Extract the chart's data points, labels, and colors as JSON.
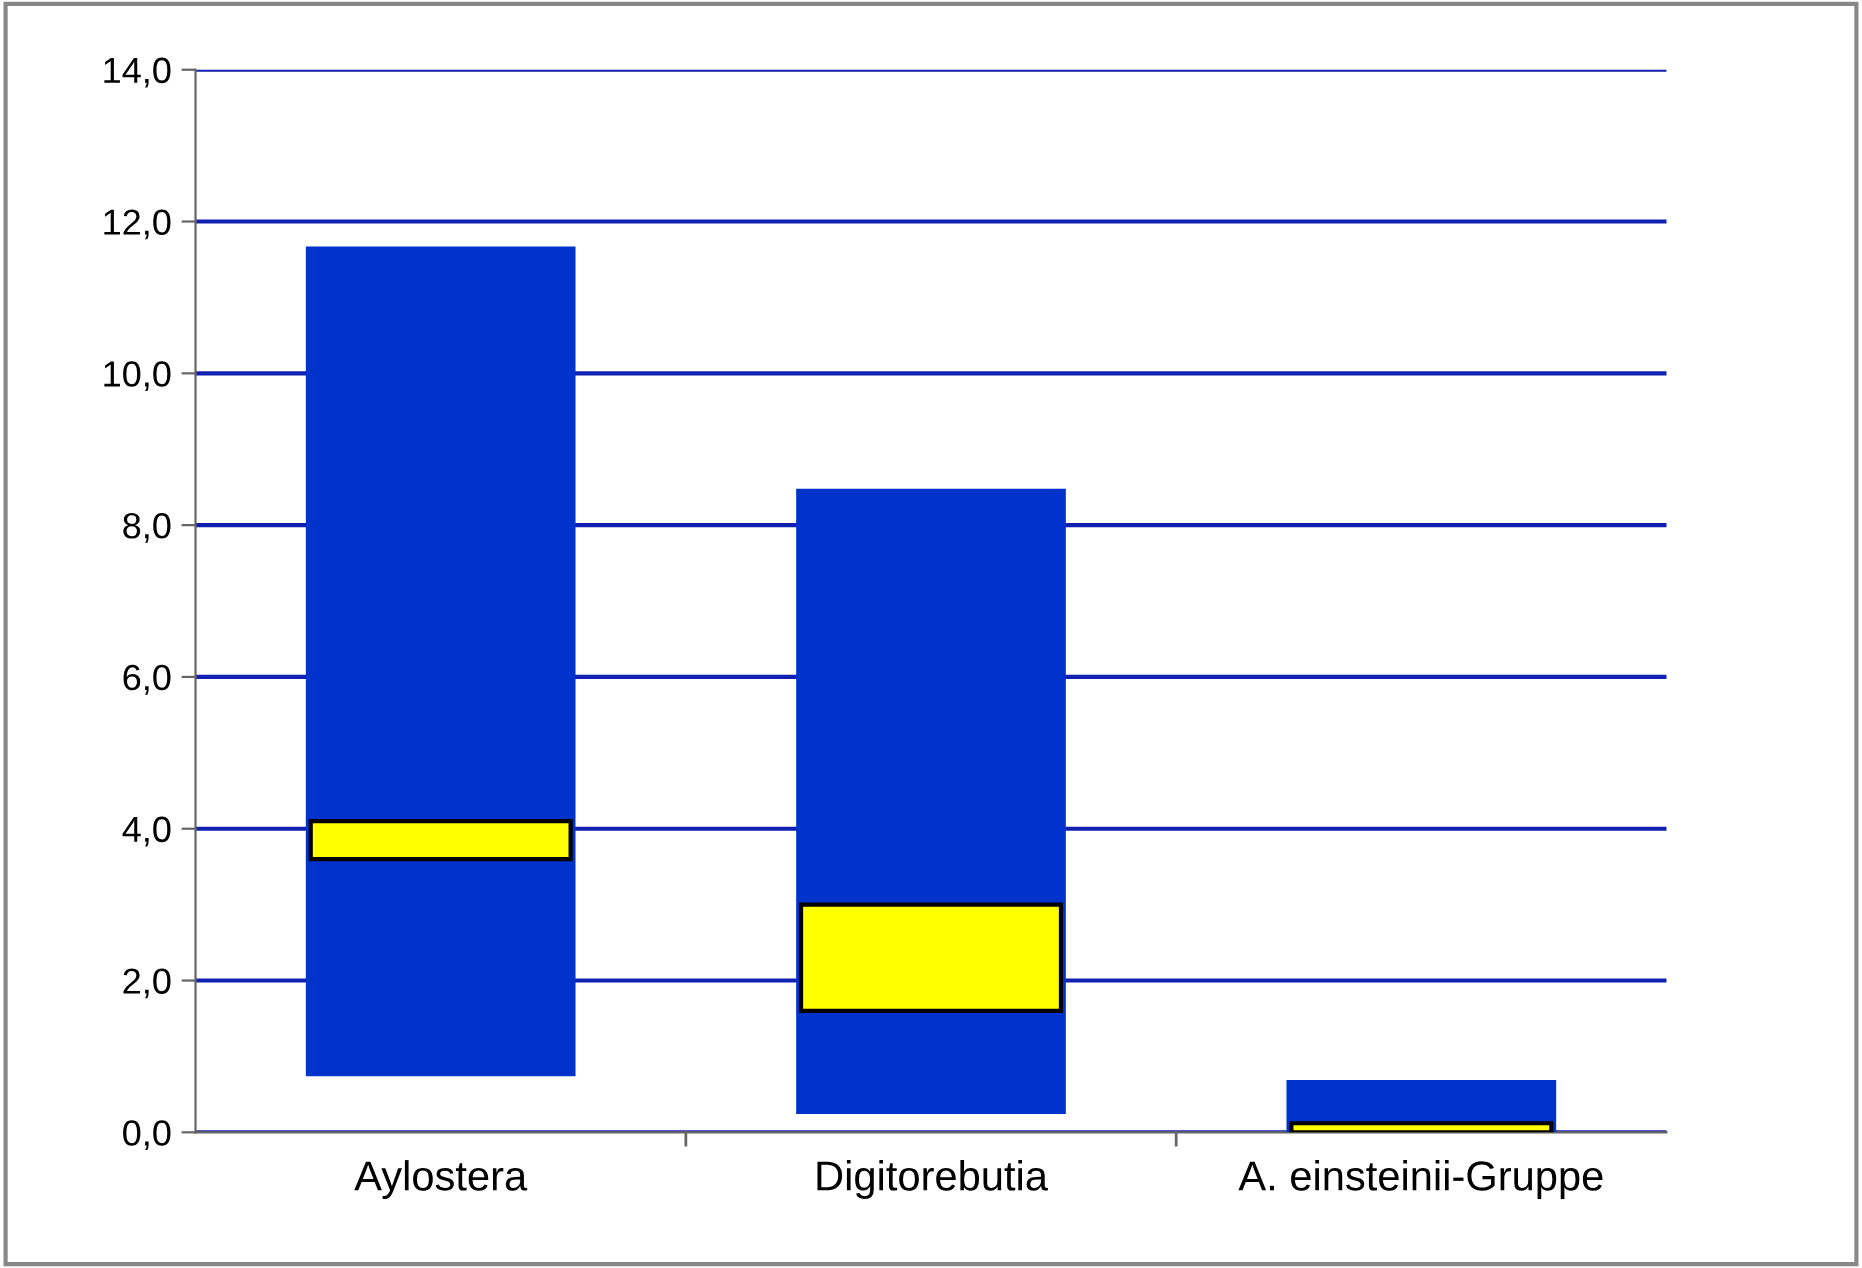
{
  "chart_data": {
    "type": "bar",
    "categories": [
      "Aylostera",
      "Digitorebutia",
      "A. einsteinii-Gruppe"
    ],
    "series": [
      {
        "color": "#0033cc",
        "base": [
          0.74,
          0.24,
          0.0
        ],
        "values": [
          10.93,
          8.24,
          0.69
        ]
      },
      {
        "color": "#ffff00",
        "base": [
          3.6,
          1.6,
          0.0
        ],
        "values": [
          0.5,
          1.4,
          0.12
        ]
      }
    ],
    "ylim": [
      0,
      14
    ],
    "yticks": [
      {
        "value": 0,
        "label": "0,0"
      },
      {
        "value": 2,
        "label": "2,0"
      },
      {
        "value": 4,
        "label": "4,0"
      },
      {
        "value": 6,
        "label": "6,0"
      },
      {
        "value": 8,
        "label": "8,0"
      },
      {
        "value": 10,
        "label": "10,0"
      },
      {
        "value": 12,
        "label": "12,0"
      },
      {
        "value": 14,
        "label": "14,0"
      }
    ],
    "grid": "y",
    "legend": false
  }
}
